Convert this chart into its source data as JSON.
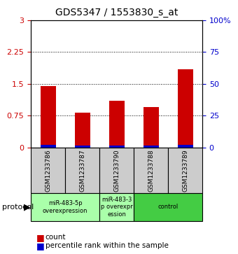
{
  "title": "GDS5347 / 1553830_s_at",
  "samples": [
    "GSM1233786",
    "GSM1233787",
    "GSM1233790",
    "GSM1233788",
    "GSM1233789"
  ],
  "count_values": [
    1.45,
    0.82,
    1.1,
    0.95,
    1.85
  ],
  "percentile_values": [
    2.0,
    1.5,
    1.5,
    1.5,
    2.0
  ],
  "ylim_left": [
    0,
    3
  ],
  "ylim_right": [
    0,
    100
  ],
  "yticks_left": [
    0,
    0.75,
    1.5,
    2.25,
    3
  ],
  "yticks_left_labels": [
    "0",
    "0.75",
    "1.5",
    "2.25",
    "3"
  ],
  "yticks_right": [
    0,
    25,
    50,
    75,
    100
  ],
  "yticks_right_labels": [
    "0",
    "25",
    "50",
    "75",
    "100%"
  ],
  "bar_color_red": "#cc0000",
  "bar_color_blue": "#0000cc",
  "bar_width": 0.45,
  "group_defs": [
    {
      "start": 0,
      "end": 1,
      "label": "miR-483-5p\noverexpression",
      "color": "#aaffaa"
    },
    {
      "start": 2,
      "end": 2,
      "label": "miR-483-3\np overexpr\nession",
      "color": "#aaffaa"
    },
    {
      "start": 3,
      "end": 4,
      "label": "control",
      "color": "#44cc44"
    }
  ],
  "legend_count_label": "count",
  "legend_pct_label": "percentile rank within the sample",
  "protocol_label": "protocol",
  "tick_color_left": "#cc0000",
  "tick_color_right": "#0000cc",
  "sample_box_color": "#cccccc"
}
